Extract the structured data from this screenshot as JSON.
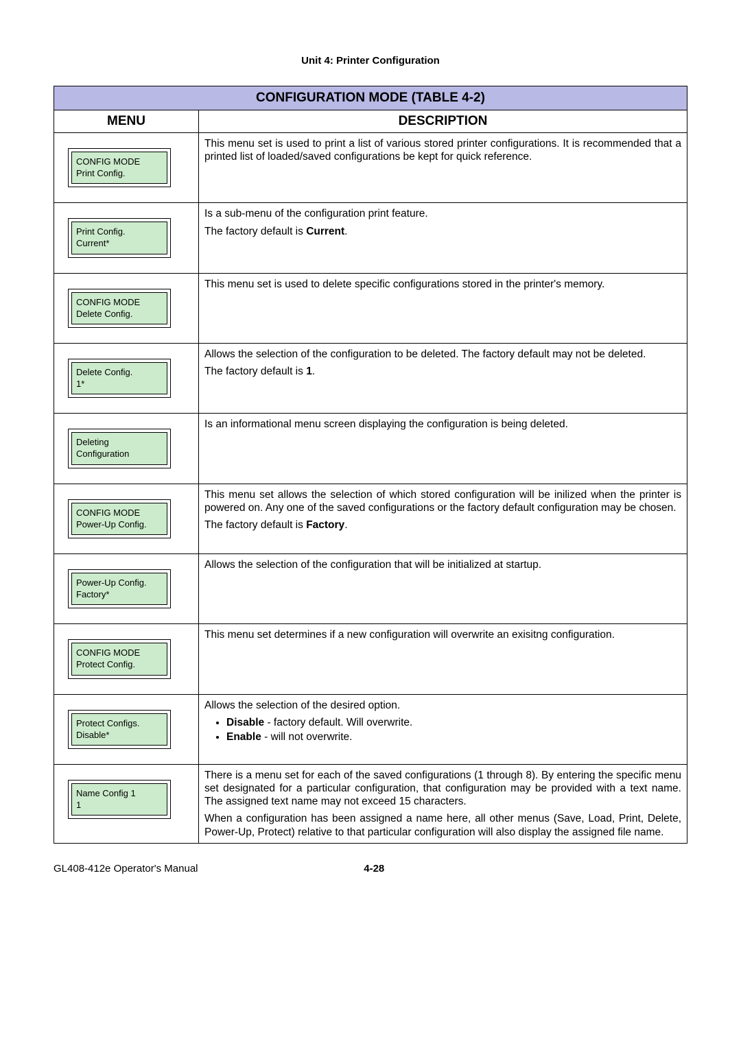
{
  "colors": {
    "title_bg": "#b9b9e6",
    "lcd_bg": "#ccebcc",
    "border": "#000000",
    "page_bg": "#ffffff",
    "text": "#000000"
  },
  "typography": {
    "body_font": "Arial, Helvetica, sans-serif",
    "title_fontsize_pt": 14,
    "header_fontsize_pt": 14,
    "body_fontsize_pt": 11,
    "lcd_fontsize_pt": 9
  },
  "header": {
    "unit_title": "Unit 4:  Printer Configuration"
  },
  "table": {
    "title": "CONFIGURATION MODE (TABLE 4-2)",
    "col_menu": "MENU",
    "col_desc": "DESCRIPTION"
  },
  "rows": [
    {
      "lcd_line1": "CONFIG MODE",
      "lcd_line2": "Print Config.",
      "desc_p1": "This menu set is used to print a list of various stored printer configurations. It is recommended that a printed list of loaded/saved configurations be kept for quick reference."
    },
    {
      "lcd_line1": "Print Config.",
      "lcd_line2": "Current*",
      "desc_p1": "Is a sub-menu of the configuration print feature.",
      "desc_p2_pre": "The factory default is ",
      "desc_p2_bold": "Current",
      "desc_p2_post": "."
    },
    {
      "lcd_line1": "CONFIG MODE",
      "lcd_line2": "Delete Config.",
      "desc_p1": "This menu set is used to delete specific configurations stored in the printer's memory."
    },
    {
      "lcd_line1": "Delete Config.",
      "lcd_line2": "1*",
      "desc_p1": "Allows the selection of the configuration to be deleted. The factory default may not be deleted.",
      "desc_p2_pre": "The factory default is ",
      "desc_p2_bold": "1",
      "desc_p2_post": "."
    },
    {
      "lcd_line1": "Deleting",
      "lcd_line2": "Configuration",
      "desc_p1": "Is an informational menu screen displaying the configuration is being deleted."
    },
    {
      "lcd_line1": "CONFIG MODE",
      "lcd_line2": "Power-Up Config.",
      "desc_p1": "This menu set allows the selection of which stored configuration will be inilized when the printer is powered on. Any one of the saved configurations or the factory default configuration may be chosen.",
      "desc_p2_pre": "The factory default is ",
      "desc_p2_bold": "Factory",
      "desc_p2_post": "."
    },
    {
      "lcd_line1": "Power-Up Config.",
      "lcd_line2": "Factory*",
      "desc_p1": "Allows the selection of the configuration that will be initialized at startup."
    },
    {
      "lcd_line1": "CONFIG MODE",
      "lcd_line2": "Protect Config.",
      "desc_p1": "This menu set determines if a new configuration will overwrite an exisitng configuration."
    },
    {
      "lcd_line1": "Protect Configs.",
      "lcd_line2": "Disable*",
      "desc_p1": "Allows the selection of the desired option.",
      "bullets": [
        {
          "bold": "Disable",
          "rest": " - factory default. Will overwrite."
        },
        {
          "bold": "Enable",
          "rest": " -  will not overwrite."
        }
      ]
    },
    {
      "lcd_line1": "Name Config 1",
      "lcd_line2": "1",
      "desc_p1": "There is a menu set for each of the saved configurations (1 through 8). By entering the specific menu set designated for a particular configuration, that configuration may be provided with a text name. The assigned text name may not exceed 15 characters.",
      "desc_p2_plain": "When a configuration has been assigned a name here, all other menus (Save, Load, Print, Delete, Power-Up, Protect) relative to that particular configuration will also display the assigned file name."
    }
  ],
  "footer": {
    "left": "GL408-412e Operator's Manual",
    "center": "4-28"
  }
}
